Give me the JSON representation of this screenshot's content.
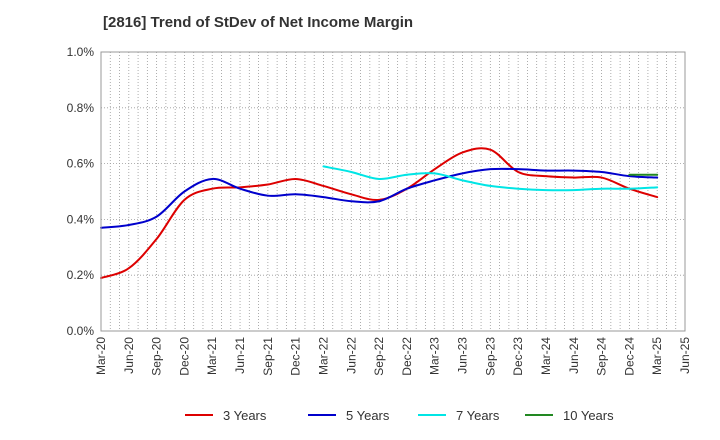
{
  "chart_data": {
    "type": "line",
    "title": "[2816]  Trend of StDev of Net Income Margin",
    "xlabel": "",
    "ylabel": "",
    "x": [
      "Mar-20",
      "Jun-20",
      "Sep-20",
      "Dec-20",
      "Mar-21",
      "Jun-21",
      "Sep-21",
      "Dec-21",
      "Mar-22",
      "Jun-22",
      "Sep-22",
      "Dec-22",
      "Mar-23",
      "Jun-23",
      "Sep-23",
      "Dec-23",
      "Mar-24",
      "Jun-24",
      "Sep-24",
      "Dec-24",
      "Mar-25"
    ],
    "x_tick_labels": [
      "Mar-20",
      "Jun-20",
      "Sep-20",
      "Dec-20",
      "Mar-21",
      "Jun-21",
      "Sep-21",
      "Dec-21",
      "Mar-22",
      "Jun-22",
      "Sep-22",
      "Dec-22",
      "Mar-23",
      "Jun-23",
      "Sep-23",
      "Dec-23",
      "Mar-24",
      "Jun-24",
      "Sep-24",
      "Dec-24",
      "Mar-25",
      "Jun-25"
    ],
    "y_tick_labels": [
      "0.0%",
      "0.2%",
      "0.4%",
      "0.6%",
      "0.8%",
      "1.0%"
    ],
    "ylim": [
      0,
      1.0
    ],
    "grid": true,
    "legend_position": "bottom",
    "series": [
      {
        "name": "3 Years",
        "color": "#dd0000",
        "values": [
          0.19,
          0.225,
          0.33,
          0.47,
          0.51,
          0.515,
          0.525,
          0.545,
          0.52,
          0.49,
          0.47,
          0.51,
          0.58,
          0.64,
          0.65,
          0.57,
          0.555,
          0.55,
          0.55,
          0.51,
          0.48
        ]
      },
      {
        "name": "5 Years",
        "color": "#0000cc",
        "values": [
          0.37,
          0.38,
          0.41,
          0.5,
          0.545,
          0.51,
          0.485,
          0.49,
          0.48,
          0.465,
          0.465,
          0.51,
          0.54,
          0.565,
          0.58,
          0.58,
          0.575,
          0.575,
          0.57,
          0.555,
          0.55
        ]
      },
      {
        "name": "7 Years",
        "color": "#00e5e5",
        "values": [
          null,
          null,
          null,
          null,
          null,
          null,
          null,
          null,
          0.59,
          0.57,
          0.545,
          0.56,
          0.565,
          0.54,
          0.52,
          0.51,
          0.505,
          0.505,
          0.51,
          0.51,
          0.515
        ]
      },
      {
        "name": "10 Years",
        "color": "#228822",
        "values": [
          null,
          null,
          null,
          null,
          null,
          null,
          null,
          null,
          null,
          null,
          null,
          null,
          null,
          null,
          null,
          null,
          null,
          null,
          null,
          0.56,
          0.56
        ]
      }
    ]
  }
}
